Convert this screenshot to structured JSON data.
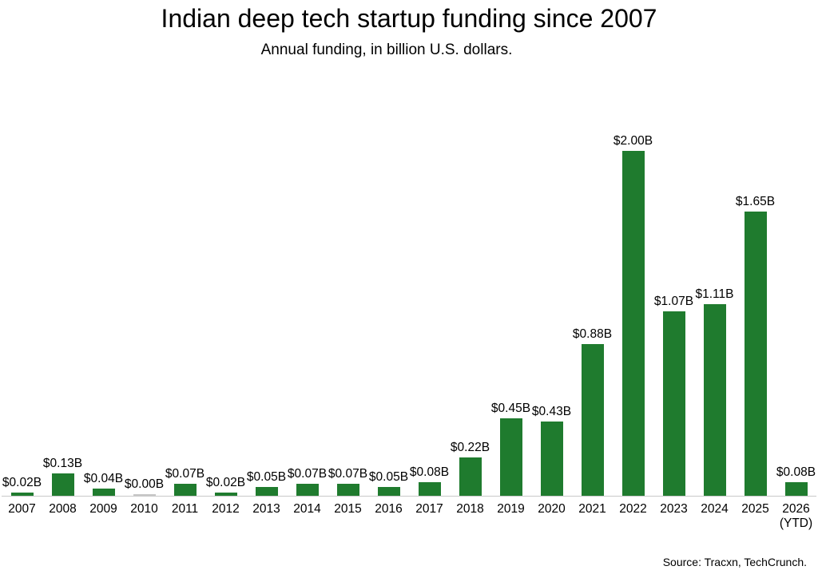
{
  "source": "Source: Tracxn, TechCrunch.",
  "colors": {
    "bar": "#1f7b2e",
    "zero_bar": "#c6c6c6",
    "axis_line": "#c9c9c9",
    "text": "#000000",
    "background": "#ffffff"
  },
  "chart_data": {
    "type": "bar",
    "title": "Indian deep tech startup funding since 2007",
    "subtitle": "Annual funding, in billion U.S. dollars.",
    "unit": "billion U.S. dollars",
    "categories": [
      "2007",
      "2008",
      "2009",
      "2010",
      "2011",
      "2012",
      "2013",
      "2014",
      "2015",
      "2016",
      "2017",
      "2018",
      "2019",
      "2020",
      "2021",
      "2022",
      "2023",
      "2024",
      "2025",
      "2026\n(YTD)"
    ],
    "values": [
      0.02,
      0.13,
      0.04,
      0.0,
      0.07,
      0.02,
      0.05,
      0.07,
      0.07,
      0.05,
      0.08,
      0.22,
      0.45,
      0.43,
      0.88,
      2.0,
      1.07,
      1.11,
      1.65,
      0.08
    ],
    "data_labels": [
      "$0.02B",
      "$0.13B",
      "$0.04B",
      "$0.00B",
      "$0.07B",
      "$0.02B",
      "$0.05B",
      "$0.07B",
      "$0.07B",
      "$0.05B",
      "$0.08B",
      "$0.22B",
      "$0.45B",
      "$0.43B",
      "$0.88B",
      "$2.00B",
      "$1.07B",
      "$1.11B",
      "$1.65B",
      "$0.08B"
    ],
    "value_format": "$#.##B",
    "ylim": [
      0,
      2.2
    ],
    "grid": false,
    "legend": false,
    "orientation": "vertical",
    "y_axis_visible": false,
    "baseline_visible": true
  }
}
